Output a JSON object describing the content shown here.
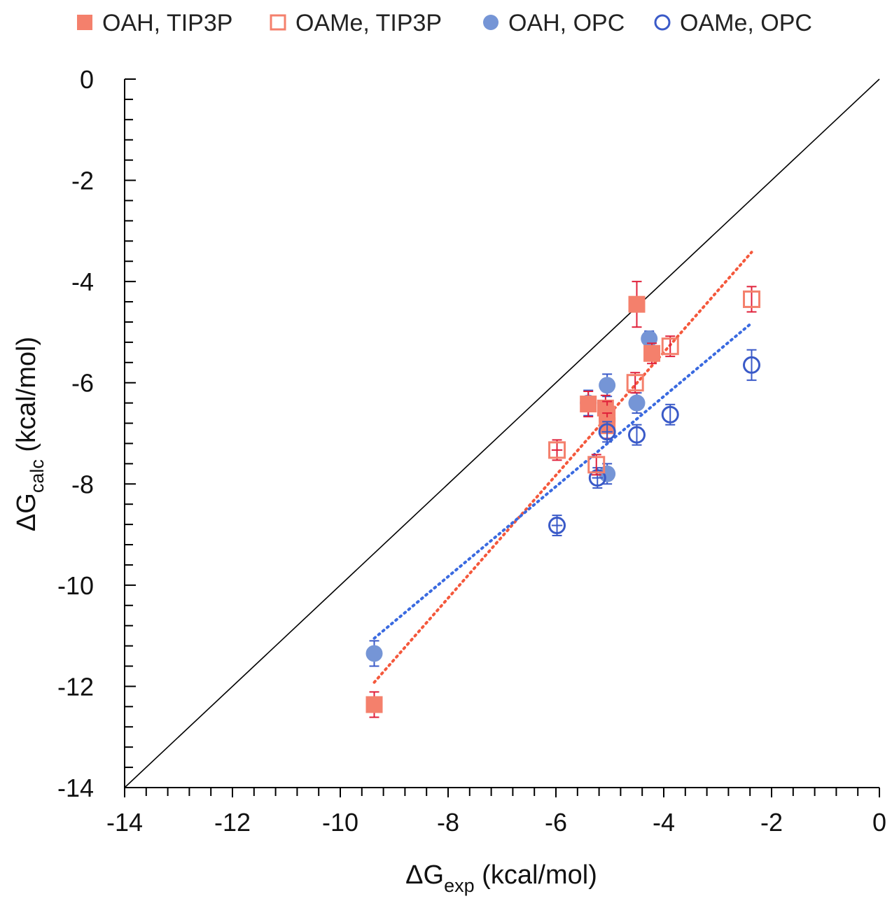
{
  "chart_data": {
    "type": "scatter",
    "title": "",
    "xlabel": {
      "main": "ΔG",
      "sub": "exp",
      "unit": " (kcal/mol)"
    },
    "ylabel": {
      "main": "ΔG",
      "sub": "calc",
      "unit": " (kcal/mol)"
    },
    "xlim": [
      -14,
      0
    ],
    "ylim": [
      -14,
      0
    ],
    "x_major_ticks": [
      -14,
      -12,
      -10,
      -8,
      -6,
      -4,
      -2,
      0
    ],
    "y_major_ticks": [
      0,
      -2,
      -4,
      -6,
      -8,
      -10,
      -12,
      -14
    ],
    "x_tick_labels": [
      "-14",
      "-12",
      "-10",
      "-8",
      "-6",
      "-4",
      "-2",
      "0"
    ],
    "y_tick_labels": [
      "0",
      "-2",
      "-4",
      "-6",
      "-8",
      "-10",
      "-12",
      "-14"
    ],
    "grid": false,
    "legend_position": "top",
    "identity_line": {
      "from": [
        -14,
        -14
      ],
      "to": [
        0,
        0
      ],
      "color": "#000000"
    },
    "series": [
      {
        "name": "OAH, TIP3P",
        "marker": "filled-square",
        "color": "#f4806c",
        "error_color": "#e0203a",
        "points": [
          {
            "x": -9.37,
            "y": -12.36,
            "yerr": 0.25
          },
          {
            "x": -5.4,
            "y": -6.42,
            "yerr": 0.25
          },
          {
            "x": -5.08,
            "y": -6.5,
            "yerr": 0.25
          },
          {
            "x": -5.05,
            "y": -6.62,
            "yerr": 0.25
          },
          {
            "x": -5.05,
            "y": -6.85,
            "yerr": 0.25
          },
          {
            "x": -4.5,
            "y": -4.45,
            "yerr": 0.45
          },
          {
            "x": -4.22,
            "y": -5.42,
            "yerr": 0.2
          }
        ],
        "trendline": {
          "from": [
            -9.37,
            -11.92
          ],
          "to": [
            -2.37,
            -3.42
          ]
        }
      },
      {
        "name": "OAMe, TIP3P",
        "marker": "open-square",
        "color": "#f4806c",
        "error_color": "#e0203a",
        "points": [
          {
            "x": -5.98,
            "y": -7.33,
            "yerr": 0.2,
            "xerr": 0.1
          },
          {
            "x": -5.25,
            "y": -7.62,
            "yerr": 0.2
          },
          {
            "x": -4.53,
            "y": -6.0,
            "yerr": 0.2
          },
          {
            "x": -3.88,
            "y": -5.28,
            "yerr": 0.2
          },
          {
            "x": -2.37,
            "y": -4.35,
            "yerr": 0.25
          }
        ]
      },
      {
        "name": "OAH, OPC",
        "marker": "filled-circle",
        "color": "#7595d6",
        "error_color": "#3a5ac8",
        "points": [
          {
            "x": -9.37,
            "y": -11.35,
            "yerr": 0.25
          },
          {
            "x": -5.4,
            "y": -6.4,
            "yerr": 0.25
          },
          {
            "x": -5.05,
            "y": -6.05,
            "yerr": 0.22
          },
          {
            "x": -5.05,
            "y": -7.8,
            "yerr": 0.2
          },
          {
            "x": -4.5,
            "y": -6.4,
            "yerr": 0.2
          },
          {
            "x": -4.27,
            "y": -5.13,
            "yerr": 0.15
          }
        ],
        "trendline": {
          "from": [
            -9.37,
            -11.05
          ],
          "to": [
            -2.37,
            -4.82
          ]
        }
      },
      {
        "name": "OAMe, OPC",
        "marker": "open-circle",
        "color": "#3a5ac8",
        "error_color": "#3a5ac8",
        "points": [
          {
            "x": -5.98,
            "y": -8.82,
            "yerr": 0.2,
            "xerr": 0.1
          },
          {
            "x": -5.23,
            "y": -7.88,
            "yerr": 0.2,
            "xerr": 0.1
          },
          {
            "x": -5.05,
            "y": -6.97,
            "yerr": 0.2,
            "xerr": 0.1
          },
          {
            "x": -4.5,
            "y": -7.03,
            "yerr": 0.2
          },
          {
            "x": -3.88,
            "y": -6.63,
            "yerr": 0.2
          },
          {
            "x": -2.37,
            "y": -5.65,
            "yerr": 0.3
          }
        ]
      }
    ]
  }
}
